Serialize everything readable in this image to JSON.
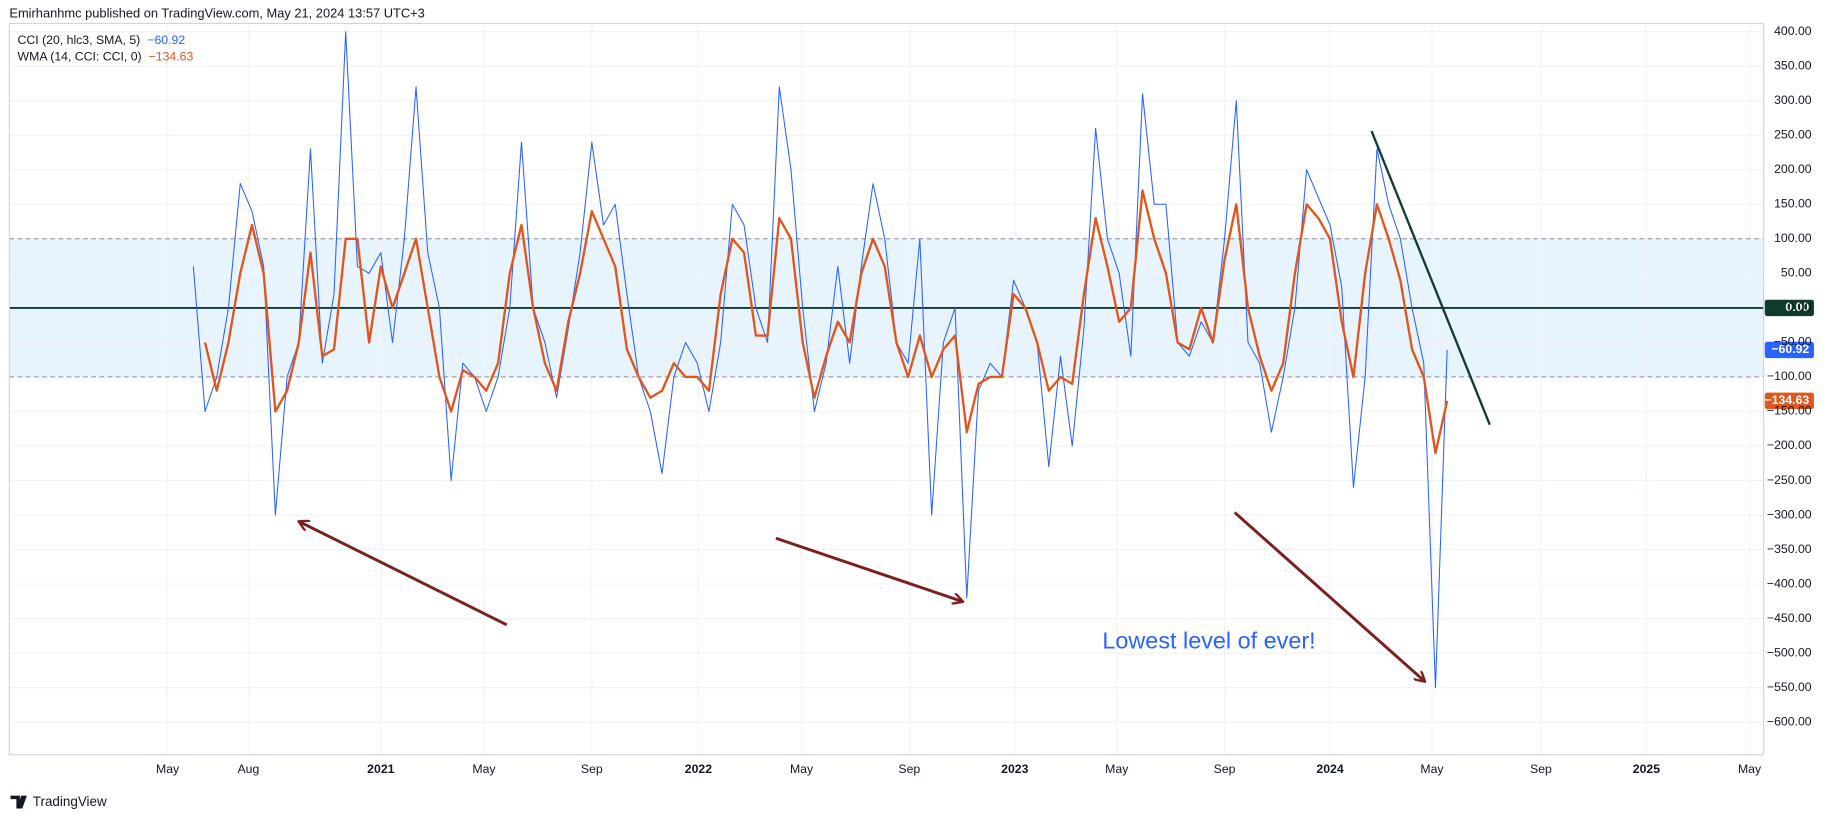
{
  "header": "Emirhanhmc published on TradingView.com, May 21, 2024 13:57 UTC+3",
  "footer": "TradingView",
  "chart_data": {
    "type": "line",
    "annotation": "Lowest level of ever!",
    "xlim": [
      -15.7,
      134
    ],
    "xticks": [
      {
        "value": -2.2,
        "label": "May"
      },
      {
        "value": 4.7,
        "label": "Aug"
      },
      {
        "value": 16,
        "label": "2021"
      },
      {
        "value": 24.8,
        "label": "May"
      },
      {
        "value": 34,
        "label": "Sep"
      },
      {
        "value": 43.1,
        "label": "2022"
      },
      {
        "value": 51.9,
        "label": "May"
      },
      {
        "value": 61.1,
        "label": "Sep"
      },
      {
        "value": 70.1,
        "label": "2023"
      },
      {
        "value": 78.8,
        "label": "May"
      },
      {
        "value": 88,
        "label": "Sep"
      },
      {
        "value": 97,
        "label": "2024"
      },
      {
        "value": 105.7,
        "label": "May"
      },
      {
        "value": 115,
        "label": "Sep"
      },
      {
        "value": 124,
        "label": "2025"
      },
      {
        "value": 132.8,
        "label": "May"
      }
    ],
    "ylim": [
      -647,
      412
    ],
    "yticks": [
      {
        "value": 400,
        "label": "400.00"
      },
      {
        "value": 350,
        "label": "350.00"
      },
      {
        "value": 300,
        "label": "300.00"
      },
      {
        "value": 250,
        "label": "250.00"
      },
      {
        "value": 200,
        "label": "200.00"
      },
      {
        "value": 150,
        "label": "150.00"
      },
      {
        "value": 100,
        "label": "100.00"
      },
      {
        "value": 50,
        "label": "50.00"
      },
      {
        "value": 0,
        "label": "0.00"
      },
      {
        "value": -50,
        "label": "−50.00"
      },
      {
        "value": -100,
        "label": "−100.00"
      },
      {
        "value": -150,
        "label": "−150.00"
      },
      {
        "value": -200,
        "label": "−200.00"
      },
      {
        "value": -250,
        "label": "−250.00"
      },
      {
        "value": -300,
        "label": "−300.00"
      },
      {
        "value": -350,
        "label": "−350.00"
      },
      {
        "value": -400,
        "label": "−400.00"
      },
      {
        "value": -450,
        "label": "−450.00"
      },
      {
        "value": -500,
        "label": "−500.00"
      },
      {
        "value": -550,
        "label": "−550.00"
      },
      {
        "value": -600,
        "label": "−600.00"
      }
    ],
    "grid": true,
    "band": {
      "upper": 100,
      "lower": -100,
      "color": "#e3f2fd"
    },
    "zero_line": {
      "value": 0,
      "label": "0.00",
      "color": "#0f3b2c"
    },
    "series": [
      {
        "name": "CCI (20, hlc3, SMA, 5)",
        "color": "#2962ff",
        "last_label": "−60.92",
        "values": [
          60,
          -150,
          -100,
          0,
          180,
          140,
          60,
          -300,
          -100,
          -50,
          230,
          -80,
          20,
          400,
          60,
          50,
          80,
          -50,
          100,
          320,
          80,
          0,
          -250,
          -80,
          -100,
          -150,
          -100,
          0,
          240,
          0,
          -50,
          -130,
          -30,
          80,
          240,
          120,
          150,
          20,
          -100,
          -150,
          -240,
          -100,
          -50,
          -80,
          -150,
          -50,
          150,
          120,
          0,
          -50,
          320,
          200,
          0,
          -150,
          -80,
          60,
          -80,
          60,
          180,
          100,
          -50,
          -80,
          100,
          -300,
          -50,
          0,
          -420,
          -120,
          -80,
          -100,
          40,
          0,
          -50,
          -230,
          -70,
          -200,
          -30,
          260,
          100,
          50,
          -70,
          310,
          150,
          150,
          -50,
          -70,
          -20,
          -50,
          100,
          300,
          -50,
          -80,
          -180,
          -100,
          0,
          200,
          160,
          120,
          30,
          -260,
          -100,
          230,
          150,
          100,
          0,
          -80,
          -550,
          -60.92
        ]
      },
      {
        "name": "WMA (14, CCI: CCI, 0)",
        "color": "#e0561c",
        "last_label": "−134.63",
        "values": [
          null,
          -50,
          -120,
          -50,
          50,
          120,
          50,
          -150,
          -120,
          -50,
          80,
          -70,
          -60,
          100,
          100,
          -50,
          60,
          0,
          50,
          100,
          0,
          -100,
          -150,
          -90,
          -100,
          -120,
          -80,
          50,
          120,
          0,
          -80,
          -120,
          -20,
          50,
          140,
          100,
          60,
          -60,
          -100,
          -130,
          -120,
          -80,
          -100,
          -100,
          -120,
          20,
          100,
          80,
          -40,
          -40,
          130,
          100,
          -50,
          -130,
          -70,
          -20,
          -50,
          50,
          100,
          60,
          -50,
          -100,
          -40,
          -100,
          -60,
          -40,
          -180,
          -110,
          -100,
          -100,
          20,
          0,
          -50,
          -120,
          -100,
          -110,
          20,
          130,
          60,
          -20,
          0,
          170,
          100,
          50,
          -50,
          -60,
          0,
          -50,
          70,
          150,
          0,
          -70,
          -120,
          -80,
          50,
          150,
          130,
          100,
          -20,
          -100,
          50,
          150,
          100,
          40,
          -60,
          -100,
          -210,
          -134.63
        ]
      }
    ]
  }
}
